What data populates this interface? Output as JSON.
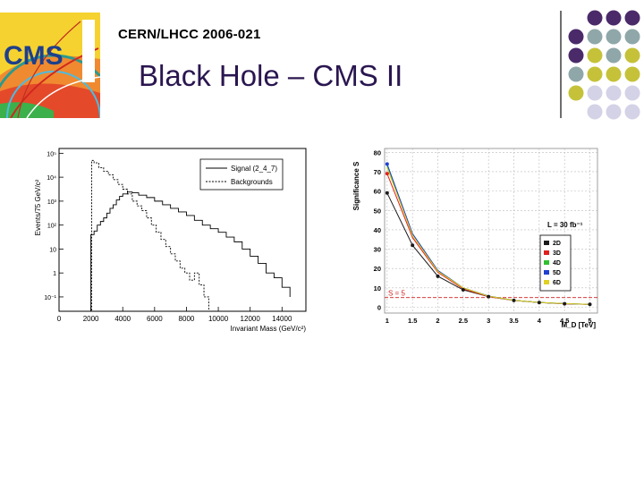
{
  "slide": {
    "report_id": "CERN/LHCC 2006-021",
    "title": "Black Hole – CMS II",
    "logo_text": "CMS",
    "accent_colors": {
      "purple": "#4b2a6a",
      "teal": "#8fa7a9",
      "olive": "#c5c23a",
      "lavender": "#d4d2e6"
    }
  },
  "chart_data": [
    {
      "type": "line",
      "ylabel": "Events/75 GeV/c²",
      "xlabel": "Invariant Mass (GeV/c²)",
      "x_ticks": [
        "0",
        "2000",
        "4000",
        "6000",
        "8000",
        "10000",
        "12000",
        "14000"
      ],
      "y_ticks": [
        "10⁻¹",
        "1",
        "10",
        "10²",
        "10³",
        "10⁴",
        "10⁵"
      ],
      "xlim": [
        0,
        15500
      ],
      "ylim_log10": [
        -1.6,
        5.2
      ],
      "legend_position": "top-right",
      "series": [
        {
          "name": "Signal (2_4_7)",
          "style": "solid",
          "x": [
            1900,
            2000,
            2200,
            2400,
            2600,
            2800,
            3000,
            3200,
            3400,
            3600,
            3800,
            4000,
            4300,
            4600,
            5000,
            5500,
            6000,
            6500,
            7000,
            7500,
            8000,
            8500,
            9000,
            9500,
            10000,
            10500,
            11000,
            11500,
            12000,
            12500,
            13000,
            13500,
            14000,
            14500
          ],
          "log10_y": [
            -1.6,
            1.6,
            1.75,
            2.0,
            2.15,
            2.3,
            2.5,
            2.7,
            2.85,
            3.05,
            3.2,
            3.3,
            3.38,
            3.35,
            3.25,
            3.15,
            3.0,
            2.85,
            2.7,
            2.55,
            2.4,
            2.2,
            2.0,
            1.85,
            1.7,
            1.5,
            1.3,
            1.0,
            0.7,
            0.4,
            0.0,
            -0.2,
            -0.6,
            -1.0
          ]
        },
        {
          "name": "Backgrounds",
          "style": "dashed",
          "x": [
            1900,
            2050,
            2200,
            2500,
            2800,
            3100,
            3400,
            3700,
            4000,
            4300,
            4600,
            4900,
            5200,
            5500,
            5800,
            6100,
            6400,
            6700,
            7000,
            7300,
            7600,
            7900,
            8200,
            8500,
            8800,
            9100,
            9400
          ],
          "log10_y": [
            -1.6,
            4.7,
            4.6,
            4.4,
            4.25,
            4.1,
            3.9,
            3.7,
            3.5,
            3.3,
            3.0,
            2.8,
            2.6,
            2.3,
            2.0,
            1.7,
            1.4,
            1.1,
            0.8,
            0.5,
            0.2,
            0.0,
            -0.3,
            0.0,
            -0.5,
            -1.0,
            -1.6
          ]
        }
      ]
    },
    {
      "type": "line",
      "ylabel": "Significance S",
      "xlabel": "M_D [TeV]",
      "x_ticks": [
        "1",
        "1.5",
        "2",
        "2.5",
        "3",
        "3.5",
        "4",
        "4.5",
        "5"
      ],
      "y_ticks": [
        "0",
        "10",
        "20",
        "30",
        "40",
        "50",
        "60",
        "70",
        "80"
      ],
      "xlim": [
        0.95,
        5.15
      ],
      "ylim": [
        -3,
        82
      ],
      "grid": true,
      "annotation_lumi": "L = 30 fb⁻¹",
      "threshold": {
        "value": 5,
        "label": "S = 5",
        "color": "#d02020"
      },
      "x": [
        1,
        1.5,
        2,
        2.5,
        3,
        3.5,
        4,
        4.5,
        5
      ],
      "legend_position": "right",
      "series": [
        {
          "name": "2D",
          "color": "#1a1a1a",
          "values": [
            59,
            32,
            16,
            9,
            5.5,
            3.5,
            2.4,
            1.8,
            1.5
          ]
        },
        {
          "name": "3D",
          "color": "#e02020",
          "values": [
            69,
            36,
            18,
            9.5,
            5.5,
            3.5,
            2.5,
            1.8,
            1.5
          ]
        },
        {
          "name": "4D",
          "color": "#30c030",
          "values": [
            73,
            38,
            19,
            10,
            5.8,
            3.6,
            2.5,
            1.9,
            1.5
          ]
        },
        {
          "name": "5D",
          "color": "#2040d0",
          "values": [
            74,
            38,
            19,
            10,
            5.8,
            3.6,
            2.5,
            1.9,
            1.5
          ]
        },
        {
          "name": "6D",
          "color": "#e0d020",
          "values": [
            72,
            37,
            18.5,
            10,
            5.7,
            3.6,
            2.5,
            1.9,
            1.5
          ]
        }
      ]
    }
  ]
}
